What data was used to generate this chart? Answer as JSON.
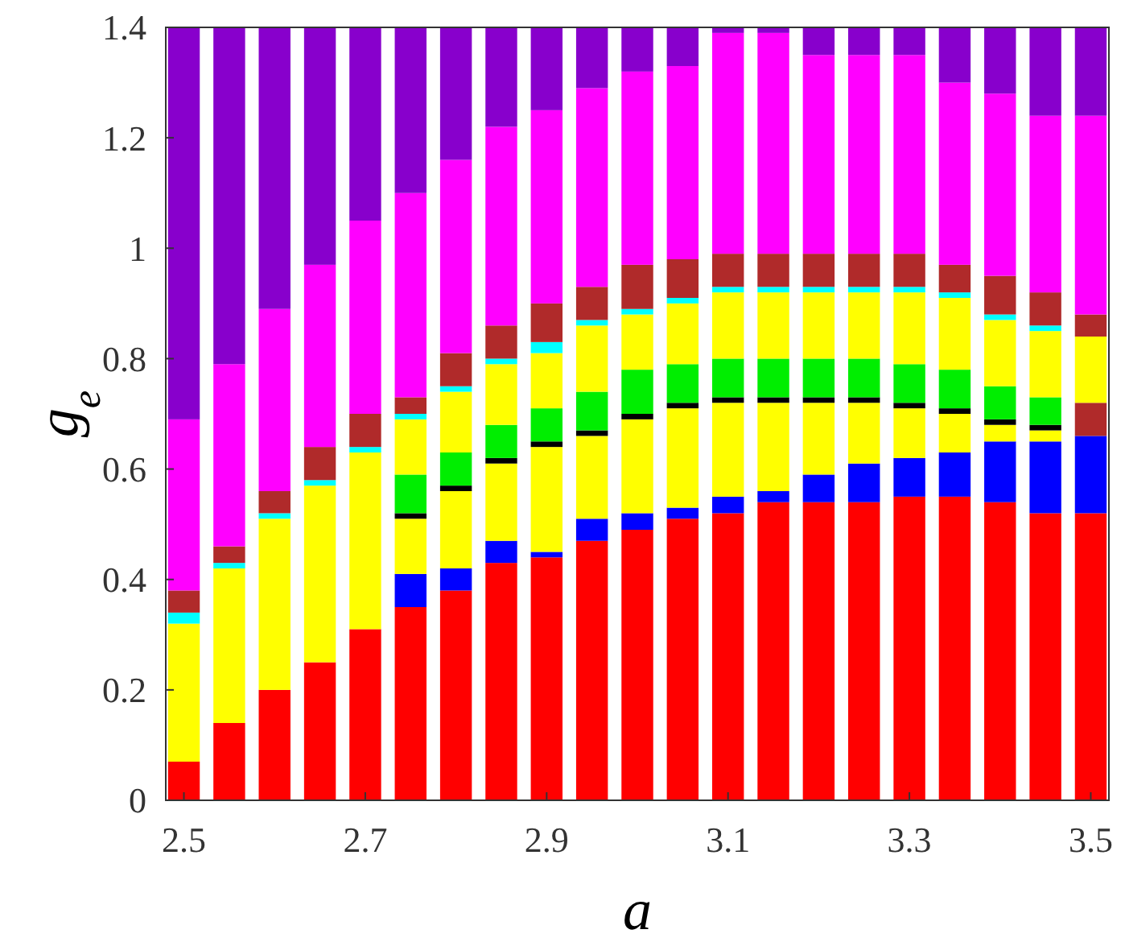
{
  "chart_data": {
    "type": "bar",
    "stacked": true,
    "xlabel": "a",
    "ylabel": "g$_{e}$",
    "x": [
      2.5,
      2.55,
      2.6,
      2.65,
      2.7,
      2.75,
      2.8,
      2.85,
      2.9,
      2.95,
      3.0,
      3.05,
      3.1,
      3.15,
      3.2,
      3.25,
      3.3,
      3.35,
      3.4,
      3.45,
      3.5
    ],
    "xlim": [
      2.48,
      3.52
    ],
    "xticks": [
      2.5,
      2.7,
      2.9,
      3.1,
      3.3,
      3.5
    ],
    "ylim": [
      0,
      1.4
    ],
    "yticks": [
      0,
      0.2,
      0.4,
      0.6,
      0.8,
      1,
      1.2,
      1.4
    ],
    "grid": false,
    "series": [
      {
        "color": "#ff0000",
        "values": [
          0.07,
          0.14,
          0.2,
          0.25,
          0.31,
          0.35,
          0.38,
          0.43,
          0.44,
          0.47,
          0.49,
          0.51,
          0.52,
          0.54,
          0.54,
          0.54,
          0.55,
          0.55,
          0.54,
          0.52,
          0.52
        ]
      },
      {
        "color": "#0000ff",
        "values": [
          0,
          0,
          0,
          0,
          0,
          0.06,
          0.04,
          0.04,
          0.01,
          0.04,
          0.03,
          0.02,
          0.03,
          0.02,
          0.05,
          0.07,
          0.07,
          0.08,
          0.11,
          0.13,
          0.14
        ]
      },
      {
        "color": "#b02a2a",
        "values": [
          0,
          0,
          0,
          0,
          0,
          0,
          0,
          0,
          0,
          0,
          0,
          0,
          0,
          0,
          0,
          0,
          0,
          0,
          0,
          0,
          0.06
        ]
      },
      {
        "color": "#ffff00",
        "values": [
          0.25,
          0.28,
          0.31,
          0.32,
          0.32,
          0.1,
          0.14,
          0.14,
          0.19,
          0.15,
          0.17,
          0.18,
          0.17,
          0.16,
          0.13,
          0.11,
          0.09,
          0.07,
          0.03,
          0.02,
          0
        ]
      },
      {
        "color": "#000000",
        "values": [
          0,
          0,
          0,
          0,
          0,
          0.01,
          0.01,
          0.01,
          0.01,
          0.01,
          0.01,
          0.01,
          0.01,
          0.01,
          0.01,
          0.01,
          0.01,
          0.01,
          0.01,
          0.01,
          0
        ]
      },
      {
        "color": "#00ee00",
        "values": [
          0,
          0,
          0,
          0,
          0,
          0.07,
          0.06,
          0.06,
          0.06,
          0.07,
          0.08,
          0.07,
          0.07,
          0.07,
          0.07,
          0.07,
          0.07,
          0.07,
          0.06,
          0.05,
          0
        ]
      },
      {
        "color": "#ffff00",
        "values": [
          0,
          0,
          0,
          0,
          0,
          0.1,
          0.11,
          0.11,
          0.1,
          0.12,
          0.1,
          0.11,
          0.12,
          0.12,
          0.12,
          0.12,
          0.13,
          0.13,
          0.12,
          0.12,
          0.12
        ]
      },
      {
        "color": "#00ffff",
        "values": [
          0.02,
          0.01,
          0.01,
          0.01,
          0.01,
          0.01,
          0.01,
          0.01,
          0.02,
          0.01,
          0.01,
          0.01,
          0.01,
          0.01,
          0.01,
          0.01,
          0.01,
          0.01,
          0.01,
          0.01,
          0
        ]
      },
      {
        "color": "#b02a2a",
        "values": [
          0.04,
          0.03,
          0.04,
          0.06,
          0.06,
          0.03,
          0.06,
          0.06,
          0.07,
          0.06,
          0.08,
          0.07,
          0.06,
          0.06,
          0.06,
          0.06,
          0.06,
          0.05,
          0.07,
          0.06,
          0.04
        ]
      },
      {
        "color": "#ff00ff",
        "values": [
          0.31,
          0.33,
          0.33,
          0.33,
          0.35,
          0.37,
          0.35,
          0.36,
          0.35,
          0.36,
          0.35,
          0.35,
          0.4,
          0.4,
          0.36,
          0.36,
          0.36,
          0.33,
          0.33,
          0.32,
          0.36
        ]
      },
      {
        "color": "#8800cc",
        "values": [
          0.71,
          0.61,
          0.51,
          0.43,
          0.35,
          0.3,
          0.24,
          0.18,
          0.15,
          0.11,
          0.08,
          0.07,
          0.01,
          0.01,
          0.05,
          0.05,
          0.05,
          0.1,
          0.12,
          0.16,
          0.16
        ]
      }
    ]
  }
}
